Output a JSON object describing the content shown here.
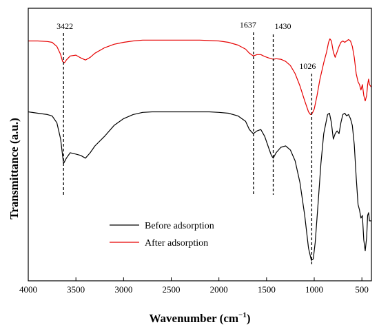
{
  "chart_data": {
    "type": "line",
    "xlabel": "Wavenumber (cm",
    "xlabel_sup": "−1",
    "xlabel_close": ")",
    "ylabel": "Transmittance (a.u.)",
    "xlim": [
      4000,
      400
    ],
    "x_reversed": true,
    "ylim": [
      0,
      100
    ],
    "y_ticks_shown": false,
    "grid": false,
    "legend_position": "bottom-center",
    "x_ticks": [
      "4000",
      "3500",
      "3000",
      "2500",
      "2000",
      "1500",
      "1000",
      "500"
    ],
    "annotations": [
      {
        "label": "3422",
        "x": 3630
      },
      {
        "label": "1637",
        "x": 1637
      },
      {
        "label": "1430",
        "x": 1430
      },
      {
        "label": "1026",
        "x": 1026
      }
    ],
    "series": [
      {
        "name": "Before adsorption",
        "color": "#000000",
        "points": [
          [
            4000,
            62
          ],
          [
            3900,
            61.5
          ],
          [
            3800,
            61
          ],
          [
            3750,
            60.5
          ],
          [
            3700,
            58
          ],
          [
            3660,
            52
          ],
          [
            3630,
            43
          ],
          [
            3600,
            45
          ],
          [
            3560,
            47
          ],
          [
            3500,
            46.5
          ],
          [
            3450,
            46
          ],
          [
            3400,
            45
          ],
          [
            3350,
            47
          ],
          [
            3300,
            49.5
          ],
          [
            3200,
            53
          ],
          [
            3100,
            57
          ],
          [
            3000,
            59.5
          ],
          [
            2900,
            61
          ],
          [
            2800,
            61.8
          ],
          [
            2700,
            62
          ],
          [
            2500,
            62
          ],
          [
            2300,
            62
          ],
          [
            2100,
            62
          ],
          [
            2000,
            61.8
          ],
          [
            1900,
            61.5
          ],
          [
            1800,
            60.5
          ],
          [
            1720,
            58.5
          ],
          [
            1680,
            55.5
          ],
          [
            1640,
            54
          ],
          [
            1600,
            55
          ],
          [
            1560,
            55.5
          ],
          [
            1520,
            53
          ],
          [
            1480,
            49
          ],
          [
            1450,
            46
          ],
          [
            1430,
            45
          ],
          [
            1400,
            47
          ],
          [
            1350,
            49
          ],
          [
            1300,
            49.5
          ],
          [
            1250,
            48
          ],
          [
            1200,
            44
          ],
          [
            1150,
            36
          ],
          [
            1100,
            24
          ],
          [
            1060,
            12
          ],
          [
            1030,
            7.5
          ],
          [
            1010,
            8
          ],
          [
            990,
            14
          ],
          [
            960,
            28
          ],
          [
            930,
            43
          ],
          [
            900,
            54
          ],
          [
            860,
            61
          ],
          [
            840,
            61.5
          ],
          [
            820,
            58
          ],
          [
            800,
            52
          ],
          [
            780,
            54
          ],
          [
            760,
            55
          ],
          [
            740,
            54
          ],
          [
            720,
            58
          ],
          [
            700,
            61
          ],
          [
            680,
            61.5
          ],
          [
            660,
            60.5
          ],
          [
            640,
            61
          ],
          [
            620,
            59.5
          ],
          [
            600,
            57
          ],
          [
            580,
            50
          ],
          [
            560,
            38
          ],
          [
            540,
            28
          ],
          [
            525,
            26
          ],
          [
            510,
            23
          ],
          [
            495,
            24
          ],
          [
            480,
            15
          ],
          [
            465,
            11
          ],
          [
            450,
            16
          ],
          [
            440,
            24
          ],
          [
            430,
            25
          ],
          [
            420,
            22
          ],
          [
            400,
            22
          ]
        ]
      },
      {
        "name": "After adsorption",
        "color": "#e60000",
        "points": [
          [
            4000,
            88
          ],
          [
            3900,
            88
          ],
          [
            3800,
            87.8
          ],
          [
            3750,
            87.5
          ],
          [
            3700,
            86
          ],
          [
            3660,
            83
          ],
          [
            3640,
            80.5
          ],
          [
            3620,
            80
          ],
          [
            3600,
            81
          ],
          [
            3560,
            82.5
          ],
          [
            3500,
            82.8
          ],
          [
            3450,
            81.8
          ],
          [
            3400,
            81
          ],
          [
            3350,
            82
          ],
          [
            3300,
            83.5
          ],
          [
            3200,
            85.5
          ],
          [
            3100,
            86.8
          ],
          [
            3000,
            87.5
          ],
          [
            2900,
            88
          ],
          [
            2800,
            88.3
          ],
          [
            2600,
            88.3
          ],
          [
            2400,
            88.3
          ],
          [
            2200,
            88.3
          ],
          [
            2000,
            88
          ],
          [
            1900,
            87.5
          ],
          [
            1800,
            86.5
          ],
          [
            1720,
            85
          ],
          [
            1680,
            83.5
          ],
          [
            1640,
            82.5
          ],
          [
            1600,
            83
          ],
          [
            1560,
            83
          ],
          [
            1520,
            82.3
          ],
          [
            1480,
            81.8
          ],
          [
            1450,
            81.5
          ],
          [
            1430,
            81.3
          ],
          [
            1400,
            81.5
          ],
          [
            1350,
            81.3
          ],
          [
            1300,
            80.5
          ],
          [
            1250,
            79
          ],
          [
            1200,
            76
          ],
          [
            1150,
            71.5
          ],
          [
            1100,
            66
          ],
          [
            1060,
            62
          ],
          [
            1040,
            61
          ],
          [
            1020,
            61.5
          ],
          [
            1000,
            63
          ],
          [
            970,
            68
          ],
          [
            940,
            74
          ],
          [
            900,
            80
          ],
          [
            870,
            84
          ],
          [
            850,
            87.5
          ],
          [
            835,
            88.8
          ],
          [
            820,
            88
          ],
          [
            800,
            84
          ],
          [
            780,
            82
          ],
          [
            760,
            84
          ],
          [
            740,
            86
          ],
          [
            720,
            87.5
          ],
          [
            700,
            88
          ],
          [
            680,
            87.5
          ],
          [
            660,
            88
          ],
          [
            640,
            88.5
          ],
          [
            620,
            88
          ],
          [
            600,
            86
          ],
          [
            580,
            82
          ],
          [
            560,
            76
          ],
          [
            540,
            73
          ],
          [
            525,
            72
          ],
          [
            510,
            70
          ],
          [
            495,
            72
          ],
          [
            480,
            68
          ],
          [
            465,
            66
          ],
          [
            450,
            68
          ],
          [
            440,
            72
          ],
          [
            430,
            74
          ],
          [
            420,
            72
          ],
          [
            400,
            71
          ]
        ]
      }
    ]
  }
}
